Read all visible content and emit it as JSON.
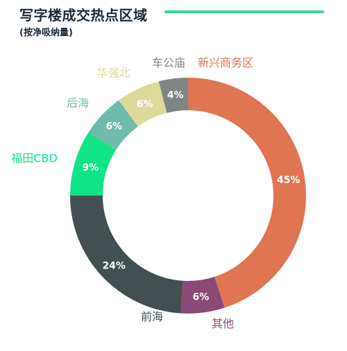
{
  "title": "写字楼成交热点区域",
  "subtitle": "(按净吸纳量)",
  "accent_color": "#2ddb8c",
  "chart_data": {
    "type": "pie",
    "style": "donut",
    "legend": "none",
    "slices": [
      {
        "label": "新兴商务区",
        "value": 45,
        "display": "45%",
        "color": "#df7553"
      },
      {
        "label": "其他",
        "value": 6,
        "display": "6%",
        "color": "#8b4a75"
      },
      {
        "label": "前海",
        "value": 24,
        "display": "24%",
        "color": "#434f51"
      },
      {
        "label": "福田CBD",
        "value": 9,
        "display": "9%",
        "color": "#0fe487"
      },
      {
        "label": "后海",
        "value": 6,
        "display": "6%",
        "color": "#6fbbac"
      },
      {
        "label": "华强北",
        "value": 6,
        "display": "6%",
        "color": "#dcd99b"
      },
      {
        "label": "车公庙",
        "value": 4,
        "display": "4%",
        "color": "#7e8583"
      }
    ]
  }
}
